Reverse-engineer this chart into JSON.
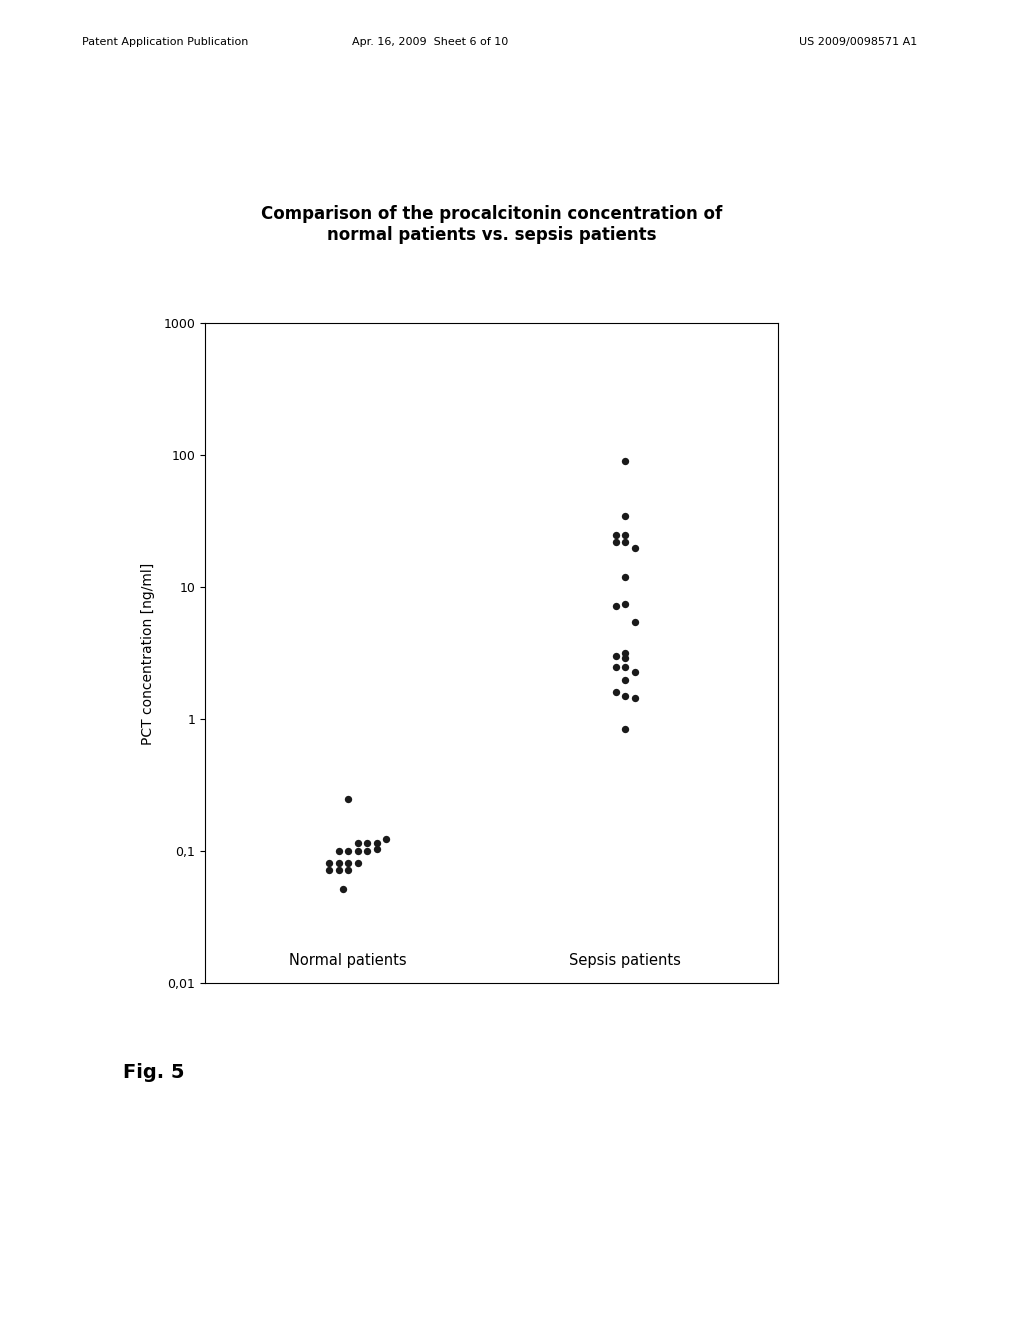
{
  "title": "Comparison of the procalcitonin concentration of\nnormal patients vs. sepsis patients",
  "ylabel": "PCT concentration [ng/ml]",
  "patent_header_left": "Patent Application Publication",
  "patent_header_mid": "Apr. 16, 2009  Sheet 6 of 10",
  "patent_header_right": "US 2009/0098571 A1",
  "fig_label": "Fig. 5",
  "ylim_log": [
    0.01,
    1000
  ],
  "yticks": [
    0.01,
    0.1,
    1,
    10,
    100,
    1000
  ],
  "ytick_labels": [
    "0,01",
    "0,1",
    "1",
    "10",
    "100",
    "1000"
  ],
  "group_labels": [
    "Normal patients",
    "Sepsis patients"
  ],
  "normal_patients_x": [
    1.0,
    1.02,
    1.04,
    1.06,
    1.08,
    0.98,
    1.0,
    1.02,
    1.04,
    1.06,
    0.96,
    0.98,
    1.0,
    1.02,
    0.96,
    0.98,
    1.0,
    0.99
  ],
  "normal_patients_y": [
    0.25,
    0.115,
    0.115,
    0.115,
    0.125,
    0.1,
    0.1,
    0.1,
    0.1,
    0.105,
    0.082,
    0.082,
    0.082,
    0.082,
    0.072,
    0.072,
    0.072,
    0.052
  ],
  "sepsis_patients_x": [
    1.58,
    1.58,
    1.56,
    1.58,
    1.56,
    1.58,
    1.6,
    1.58,
    1.58,
    1.56,
    1.6,
    1.58,
    1.56,
    1.58,
    1.56,
    1.58,
    1.6,
    1.58,
    1.56,
    1.58,
    1.6,
    1.58
  ],
  "sepsis_patients_y": [
    90,
    35,
    25,
    25,
    22,
    22,
    20,
    12,
    7.5,
    7.2,
    5.5,
    3.2,
    3.0,
    2.9,
    2.5,
    2.5,
    2.3,
    2.0,
    1.6,
    1.5,
    1.45,
    0.85
  ],
  "dot_color": "#1a1a1a",
  "dot_size": 28,
  "background_color": "#ffffff",
  "title_fontsize": 12,
  "ylabel_fontsize": 10,
  "tick_fontsize": 9,
  "group_label_fontsize": 10.5
}
